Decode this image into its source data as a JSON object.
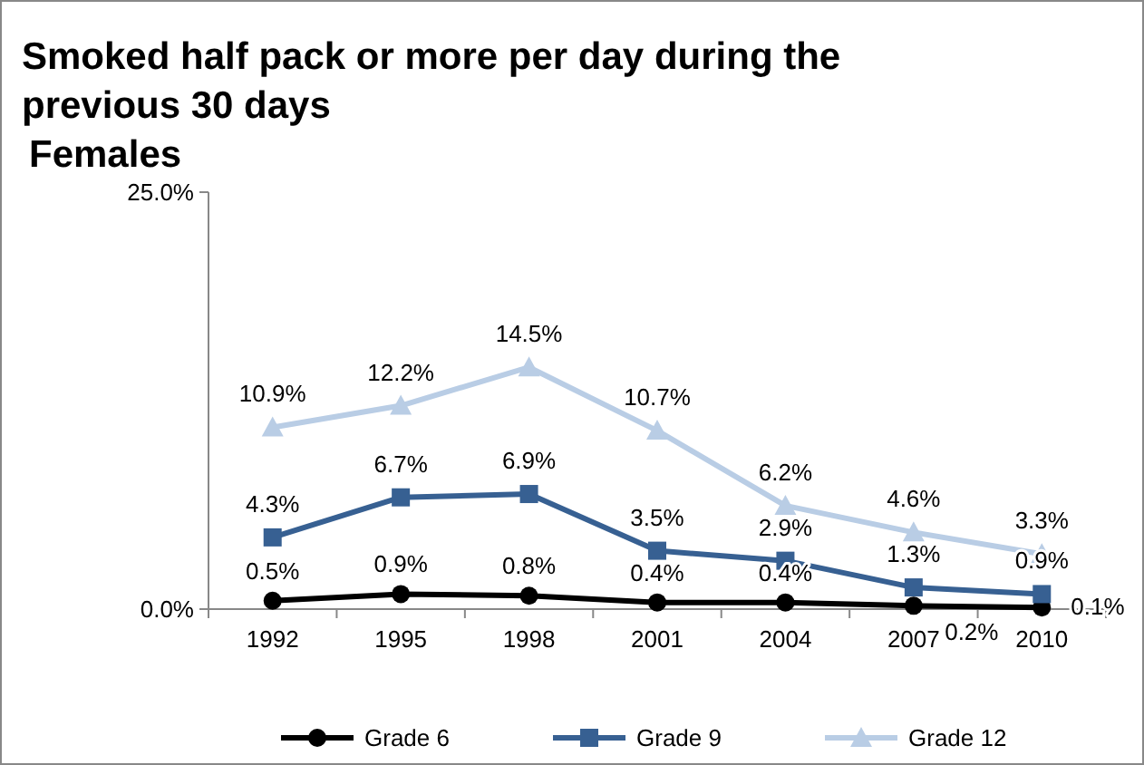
{
  "chart_data": {
    "type": "line",
    "title": "Smoked half pack or more per day during the previous 30 days",
    "subtitle": "Females",
    "categories": [
      "1992",
      "1995",
      "1998",
      "2001",
      "2004",
      "2007",
      "2010"
    ],
    "series": [
      {
        "name": "Grade 6",
        "color": "#000000",
        "marker": "circle",
        "values": [
          0.5,
          0.9,
          0.8,
          0.4,
          0.4,
          0.2,
          0.1
        ],
        "value_labels": [
          "0.5%",
          "0.9%",
          "0.8%",
          "0.4%",
          "0.4%",
          "0.2%",
          "0.1%"
        ]
      },
      {
        "name": "Grade 9",
        "color": "#376092",
        "marker": "square",
        "values": [
          4.3,
          6.7,
          6.9,
          3.5,
          2.9,
          1.3,
          0.9
        ],
        "value_labels": [
          "4.3%",
          "6.7%",
          "6.9%",
          "3.5%",
          "2.9%",
          "1.3%",
          "0.9%"
        ]
      },
      {
        "name": "Grade 12",
        "color": "#b9cde5",
        "marker": "triangle",
        "values": [
          10.9,
          12.2,
          14.5,
          10.7,
          6.2,
          4.6,
          3.3
        ],
        "value_labels": [
          "10.9%",
          "12.2%",
          "14.5%",
          "10.7%",
          "6.2%",
          "4.6%",
          "3.3%"
        ]
      }
    ],
    "ylim": [
      0,
      25
    ],
    "yticks": [
      {
        "value": 0,
        "label": "0.0%"
      },
      {
        "value": 25,
        "label": "25.0%"
      }
    ],
    "grid": false,
    "legend": "bottom",
    "line_style": "solid"
  }
}
